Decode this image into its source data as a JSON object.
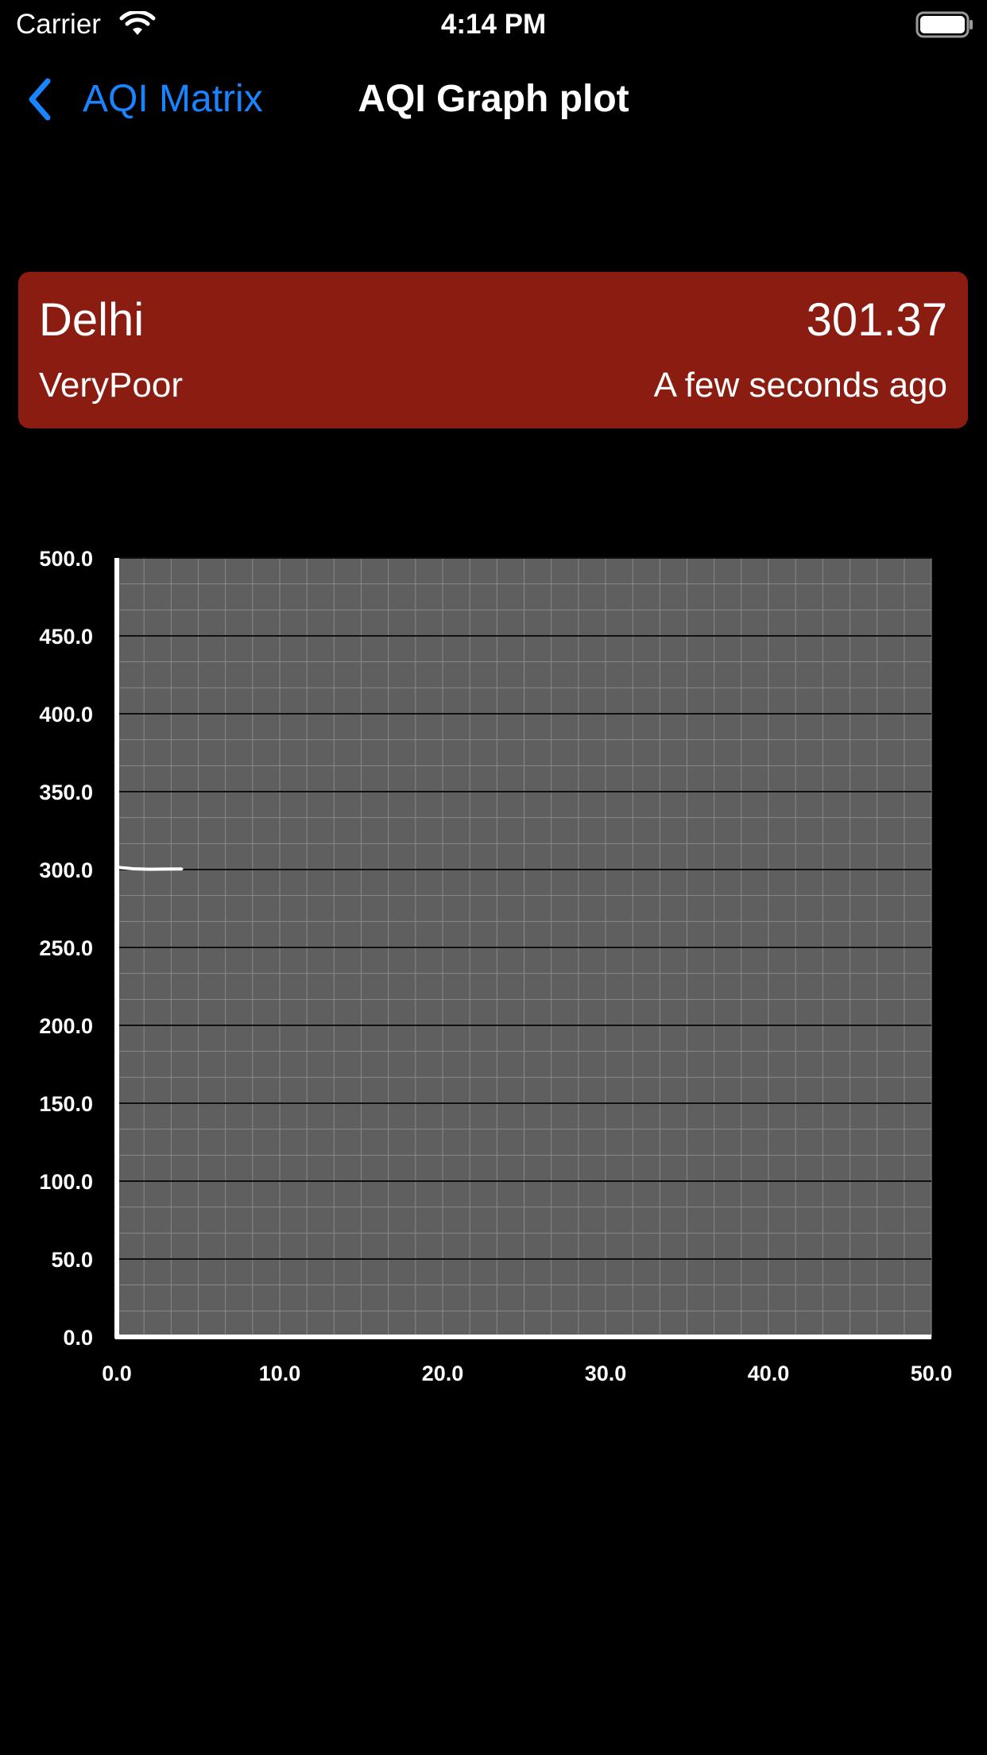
{
  "status_bar": {
    "carrier": "Carrier",
    "time": "4:14 PM",
    "icons": [
      "wifi-icon",
      "battery-icon"
    ]
  },
  "nav": {
    "back_label": "AQI Matrix",
    "back_icon": "chevron-left-icon",
    "title": "AQI Graph plot",
    "accent_color": "#1a84ff"
  },
  "card": {
    "city": "Delhi",
    "aqi_value": "301.37",
    "category": "VeryPoor",
    "updated": "A few seconds ago",
    "background_color": "#8a1c11"
  },
  "chart_data": {
    "type": "line",
    "title": "",
    "xlabel": "",
    "ylabel": "",
    "xlim": [
      0,
      50
    ],
    "ylim": [
      0,
      500
    ],
    "x_ticks": [
      "0.0",
      "10.0",
      "20.0",
      "30.0",
      "40.0",
      "50.0"
    ],
    "y_ticks": [
      "0.0",
      "50.0",
      "100.0",
      "150.0",
      "200.0",
      "250.0",
      "300.0",
      "350.0",
      "400.0",
      "450.0",
      "500.0"
    ],
    "grid": true,
    "plot_background": "#5f5f5f",
    "line_color": "#ffffff",
    "series": [
      {
        "x": [
          0,
          1,
          2,
          3,
          4
        ],
        "y": [
          301.5,
          300.5,
          300.2,
          300.3,
          300.4
        ]
      }
    ]
  }
}
